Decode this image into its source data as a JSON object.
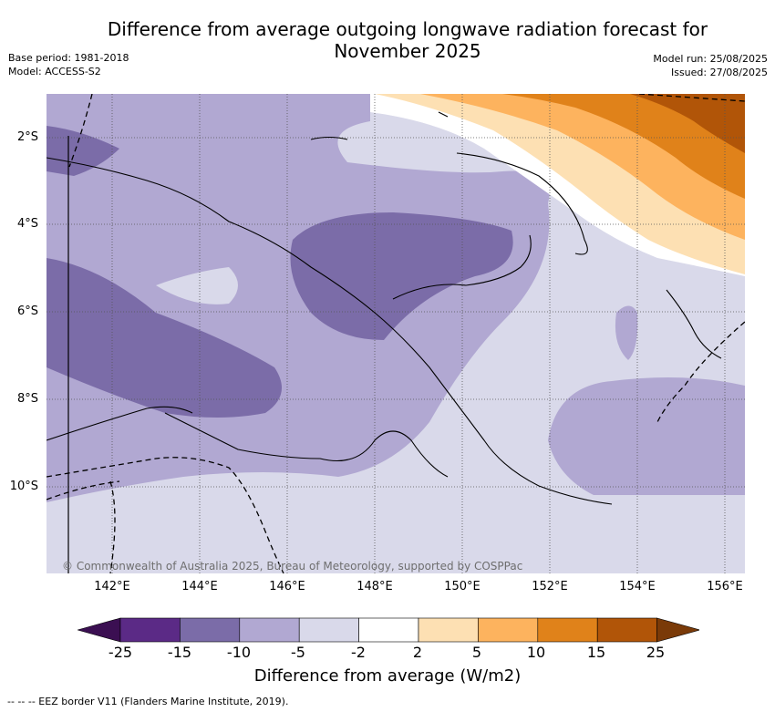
{
  "title_line1": "Difference from average outgoing longwave radiation forecast for",
  "title_line2": "November 2025",
  "meta_left": [
    "Base period: 1981-2018",
    "Model: ACCESS-S2"
  ],
  "meta_right": [
    "Model run: 25/08/2025",
    "Issued: 27/08/2025"
  ],
  "copyright": "© Commonwealth of Australia 2025, Bureau of Meteorology, supported by COSPPac",
  "lat_labels": [
    "2°S",
    "4°S",
    "6°S",
    "8°S",
    "10°S"
  ],
  "lon_labels": [
    "142°E",
    "144°E",
    "146°E",
    "148°E",
    "150°E",
    "152°E",
    "154°E",
    "156°E"
  ],
  "colorbar": {
    "ticks": [
      "-25",
      "-15",
      "-10",
      "-5",
      "-2",
      "2",
      "5",
      "10",
      "15",
      "25"
    ],
    "colors": [
      "#3b0f52",
      "#5b2a86",
      "#7b6ca8",
      "#b1a8d2",
      "#d9d9ea",
      "#ffffff",
      "#fde0b3",
      "#fdb35e",
      "#e0821a",
      "#b15508",
      "#7a3a08"
    ],
    "label": "Difference from average (W/m2)"
  },
  "footer": "--  --  -- EEZ border V11 (Flanders Marine Institute, 2019)."
}
